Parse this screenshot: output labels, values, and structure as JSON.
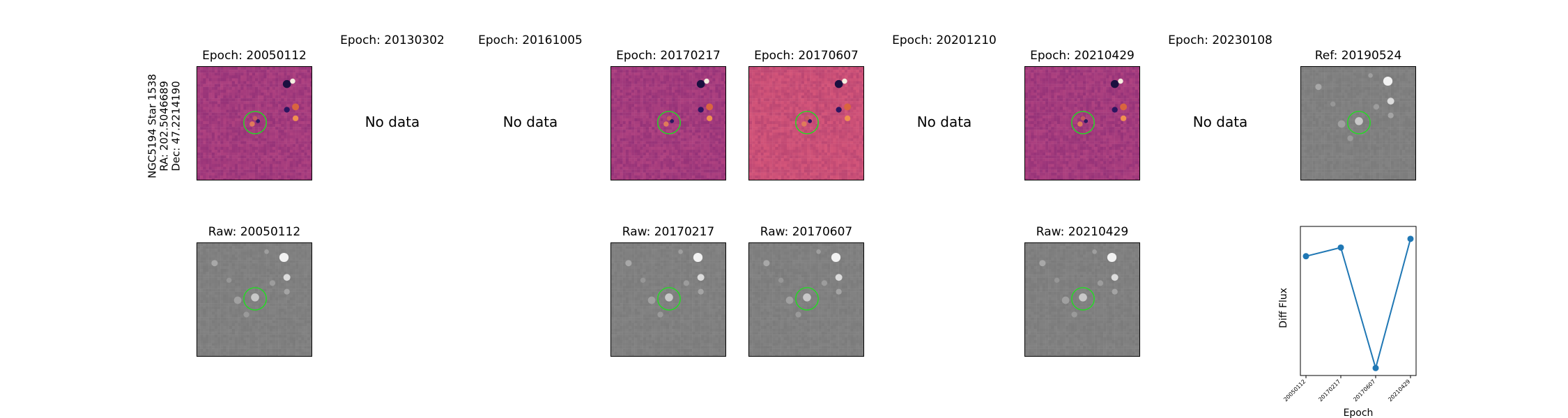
{
  "object": {
    "name": "NGC5194 Star 1538",
    "ra": "RA: 202.5046689",
    "dec": "Dec: 47.2214190"
  },
  "diff_row": [
    {
      "title": "Epoch: 20050112",
      "has_data": true,
      "noise": "diff"
    },
    {
      "title": "Epoch: 20130302",
      "has_data": false
    },
    {
      "title": "Epoch: 20161005",
      "has_data": false
    },
    {
      "title": "Epoch: 20170217",
      "has_data": true,
      "noise": "diff"
    },
    {
      "title": "Epoch: 20170607",
      "has_data": true,
      "noise": "diff-bright"
    },
    {
      "title": "Epoch: 20201210",
      "has_data": false
    },
    {
      "title": "Epoch: 20210429",
      "has_data": true,
      "noise": "diff"
    },
    {
      "title": "Epoch: 20230108",
      "has_data": false
    },
    {
      "title": "Ref: 20190524",
      "has_data": true,
      "noise": "gray"
    }
  ],
  "raw_row": [
    {
      "title": "Raw: 20050112",
      "col": 0
    },
    {
      "title": "Raw: 20170217",
      "col": 3
    },
    {
      "title": "Raw: 20170607",
      "col": 4
    },
    {
      "title": "Raw: 20210429",
      "col": 6
    }
  ],
  "no_data_label": "No data",
  "colors": {
    "diff_base": "#a23a7c",
    "diff_bright": "#c94c77",
    "gray_base": "#7f7f7f",
    "circle": "#22dd22",
    "line": "#1f77b4"
  },
  "chart_data": {
    "type": "line",
    "x": [
      "20050112",
      "20170217",
      "20170607",
      "20210429"
    ],
    "values": [
      0.78,
      0.85,
      -0.12,
      0.92
    ],
    "xlabel": "Epoch",
    "ylabel": "Diff Flux",
    "ylim": [
      -0.18,
      1.02
    ],
    "y_ticks_shown": false,
    "grid": false,
    "legend": "none"
  }
}
